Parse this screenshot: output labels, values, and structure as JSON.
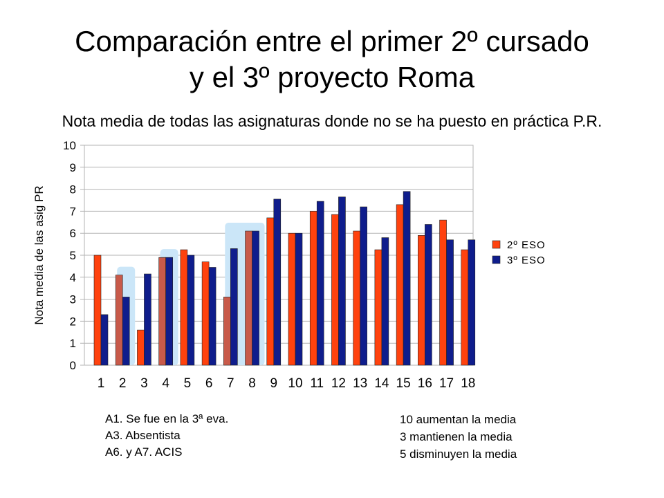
{
  "slide": {
    "title_line1": "Comparación entre el primer 2º cursado",
    "title_line2": "y el 3º proyecto Roma",
    "subtitle": "Nota media de todas las asignaturas donde no se ha puesto en práctica P.R."
  },
  "chart_data": {
    "type": "bar",
    "ylabel": "Nota media de las asig PR",
    "ylim": [
      0,
      10
    ],
    "yticks": [
      0,
      1,
      2,
      3,
      4,
      5,
      6,
      7,
      8,
      9,
      10
    ],
    "categories": [
      "1",
      "2",
      "3",
      "4",
      "5",
      "6",
      "7",
      "8",
      "9",
      "10",
      "11",
      "12",
      "13",
      "14",
      "15",
      "16",
      "17",
      "18"
    ],
    "series": [
      {
        "name": "2º ESO",
        "color": "#ff420e",
        "values": [
          5.0,
          4.1,
          1.6,
          4.9,
          5.25,
          4.7,
          3.1,
          6.1,
          6.7,
          6.0,
          7.0,
          6.85,
          6.1,
          5.25,
          7.3,
          5.9,
          6.6,
          5.25
        ]
      },
      {
        "name": "3º ESO",
        "color": "#0f1d8c",
        "values": [
          2.3,
          3.1,
          4.15,
          4.9,
          5.0,
          4.45,
          5.3,
          6.1,
          7.55,
          6.0,
          7.45,
          7.65,
          7.2,
          5.8,
          7.9,
          6.4,
          5.7,
          5.7
        ]
      }
    ],
    "muted_orange_color": "#c85a4a",
    "muted_orange_categories": [
      "2",
      "4",
      "7",
      "8"
    ],
    "highlight_color": "#cbe6f8",
    "highlighted_categories": [
      "2",
      "4",
      "7",
      "8"
    ],
    "legend_position": "right",
    "grid": true
  },
  "notes": {
    "left": [
      "A1. Se fue en la 3ª eva.",
      "A3. Absentista",
      "A6. y A7. ACIS"
    ],
    "right": [
      "10 aumentan la media",
      "3 mantienen  la media",
      "5 disminuyen  la media"
    ]
  }
}
